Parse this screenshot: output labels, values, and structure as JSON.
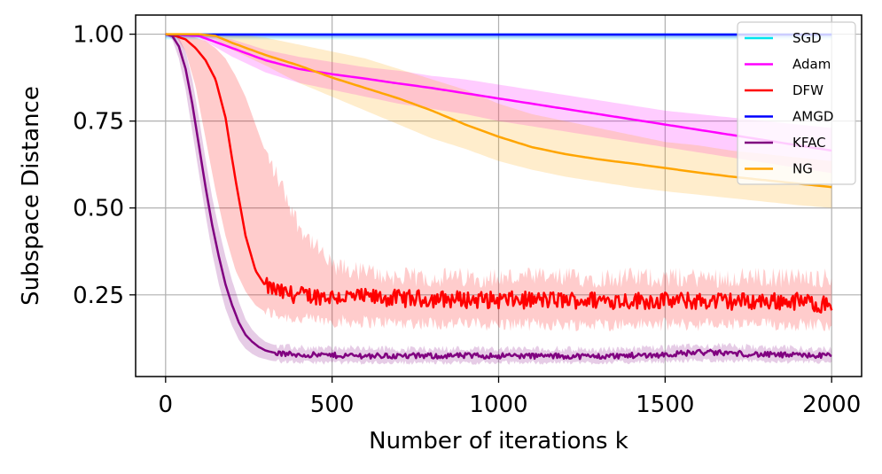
{
  "chart_data": {
    "type": "line",
    "title": "",
    "xlabel": "Number of iterations k",
    "ylabel": "Subspace Distance",
    "xlim": [
      -90,
      2090
    ],
    "ylim": [
      0.015,
      1.055
    ],
    "xticks": [
      0,
      500,
      1000,
      1500,
      2000
    ],
    "xtick_labels": [
      "0",
      "500",
      "1000",
      "1500",
      "2000"
    ],
    "yticks": [
      0.25,
      0.5,
      0.75,
      1.0
    ],
    "ytick_labels": [
      "0.25",
      "0.50",
      "0.75",
      "1.00"
    ],
    "grid": true,
    "legend_position": "upper right",
    "series": [
      {
        "name": "SGD",
        "color": "#00e5ee",
        "x": [
          0,
          2000
        ],
        "y": [
          0.999,
          0.999
        ],
        "lower": [
          0.985,
          0.985
        ],
        "upper": [
          1.0,
          1.0
        ]
      },
      {
        "name": "Adam",
        "color": "#ff00ff",
        "x": [
          0,
          100,
          200,
          300,
          400,
          500,
          600,
          700,
          800,
          900,
          1000,
          1100,
          1200,
          1300,
          1400,
          1500,
          1600,
          1700,
          1800,
          1900,
          2000
        ],
        "y": [
          1.0,
          0.995,
          0.96,
          0.925,
          0.9,
          0.885,
          0.872,
          0.858,
          0.845,
          0.83,
          0.815,
          0.8,
          0.785,
          0.77,
          0.755,
          0.74,
          0.725,
          0.71,
          0.695,
          0.68,
          0.665
        ],
        "lower": [
          1.0,
          0.99,
          0.935,
          0.89,
          0.86,
          0.84,
          0.82,
          0.8,
          0.785,
          0.77,
          0.75,
          0.735,
          0.72,
          0.705,
          0.69,
          0.675,
          0.66,
          0.645,
          0.63,
          0.615,
          0.6
        ],
        "upper": [
          1.0,
          1.0,
          0.985,
          0.955,
          0.935,
          0.92,
          0.905,
          0.895,
          0.88,
          0.87,
          0.855,
          0.84,
          0.825,
          0.81,
          0.795,
          0.78,
          0.77,
          0.76,
          0.75,
          0.74,
          0.73
        ]
      },
      {
        "name": "DFW",
        "color": "#ff0000",
        "noise": 0.025,
        "noise_start": 300,
        "x": [
          0,
          30,
          60,
          90,
          120,
          150,
          180,
          210,
          240,
          270,
          300,
          350,
          400,
          500,
          700,
          1000,
          1300,
          1600,
          1900,
          2000
        ],
        "y": [
          1.0,
          0.995,
          0.985,
          0.96,
          0.925,
          0.87,
          0.76,
          0.58,
          0.42,
          0.32,
          0.275,
          0.255,
          0.25,
          0.245,
          0.24,
          0.235,
          0.235,
          0.232,
          0.232,
          0.22
        ],
        "lower": [
          1.0,
          0.995,
          0.95,
          0.85,
          0.7,
          0.55,
          0.42,
          0.32,
          0.26,
          0.22,
          0.2,
          0.19,
          0.18,
          0.175,
          0.17,
          0.165,
          0.165,
          0.165,
          0.165,
          0.165
        ],
        "upper": [
          1.0,
          1.0,
          1.0,
          0.99,
          0.98,
          0.96,
          0.93,
          0.88,
          0.82,
          0.74,
          0.66,
          0.56,
          0.45,
          0.33,
          0.3,
          0.3,
          0.3,
          0.3,
          0.3,
          0.3
        ]
      },
      {
        "name": "AMGD",
        "color": "#0000ff",
        "x": [
          0,
          2000
        ],
        "y": [
          0.999,
          0.999
        ],
        "lower": [
          0.99,
          0.99
        ],
        "upper": [
          1.0,
          1.0
        ]
      },
      {
        "name": "KFAC",
        "color": "#800080",
        "noise": 0.008,
        "noise_start": 330,
        "x": [
          0,
          20,
          40,
          60,
          80,
          100,
          120,
          140,
          160,
          180,
          200,
          220,
          240,
          260,
          280,
          300,
          320,
          350,
          400,
          500,
          700,
          1000,
          1300,
          1500,
          1600,
          1700,
          1800,
          1900,
          2000
        ],
        "y": [
          1.0,
          0.995,
          0.965,
          0.9,
          0.8,
          0.68,
          0.56,
          0.45,
          0.36,
          0.28,
          0.22,
          0.17,
          0.135,
          0.115,
          0.1,
          0.09,
          0.085,
          0.08,
          0.078,
          0.076,
          0.074,
          0.075,
          0.073,
          0.078,
          0.085,
          0.082,
          0.078,
          0.076,
          0.075
        ],
        "lower": [
          1.0,
          0.985,
          0.93,
          0.84,
          0.72,
          0.6,
          0.48,
          0.37,
          0.28,
          0.21,
          0.16,
          0.12,
          0.095,
          0.08,
          0.07,
          0.065,
          0.06,
          0.058,
          0.056,
          0.055,
          0.055,
          0.055,
          0.055,
          0.058,
          0.062,
          0.06,
          0.058,
          0.057,
          0.056
        ],
        "upper": [
          1.0,
          1.0,
          0.99,
          0.95,
          0.87,
          0.76,
          0.64,
          0.53,
          0.44,
          0.36,
          0.29,
          0.23,
          0.18,
          0.15,
          0.13,
          0.115,
          0.108,
          0.1,
          0.098,
          0.097,
          0.095,
          0.095,
          0.093,
          0.098,
          0.105,
          0.102,
          0.098,
          0.096,
          0.095
        ]
      },
      {
        "name": "NG",
        "color": "#ffa500",
        "x": [
          0,
          100,
          150,
          200,
          300,
          400,
          500,
          600,
          700,
          800,
          900,
          1000,
          1100,
          1200,
          1300,
          1400,
          1500,
          1600,
          1700,
          1800,
          1900,
          2000
        ],
        "y": [
          1.0,
          1.0,
          0.995,
          0.975,
          0.94,
          0.91,
          0.875,
          0.845,
          0.815,
          0.78,
          0.74,
          0.705,
          0.675,
          0.655,
          0.64,
          0.628,
          0.615,
          0.602,
          0.59,
          0.58,
          0.57,
          0.56
        ],
        "lower": [
          1.0,
          0.995,
          0.985,
          0.955,
          0.91,
          0.86,
          0.82,
          0.78,
          0.74,
          0.7,
          0.67,
          0.635,
          0.61,
          0.59,
          0.575,
          0.56,
          0.548,
          0.538,
          0.528,
          0.518,
          0.508,
          0.5
        ],
        "upper": [
          1.0,
          1.0,
          1.0,
          1.0,
          0.99,
          0.97,
          0.95,
          0.93,
          0.9,
          0.87,
          0.84,
          0.8,
          0.77,
          0.75,
          0.73,
          0.71,
          0.69,
          0.68,
          0.665,
          0.655,
          0.645,
          0.635
        ]
      }
    ]
  }
}
